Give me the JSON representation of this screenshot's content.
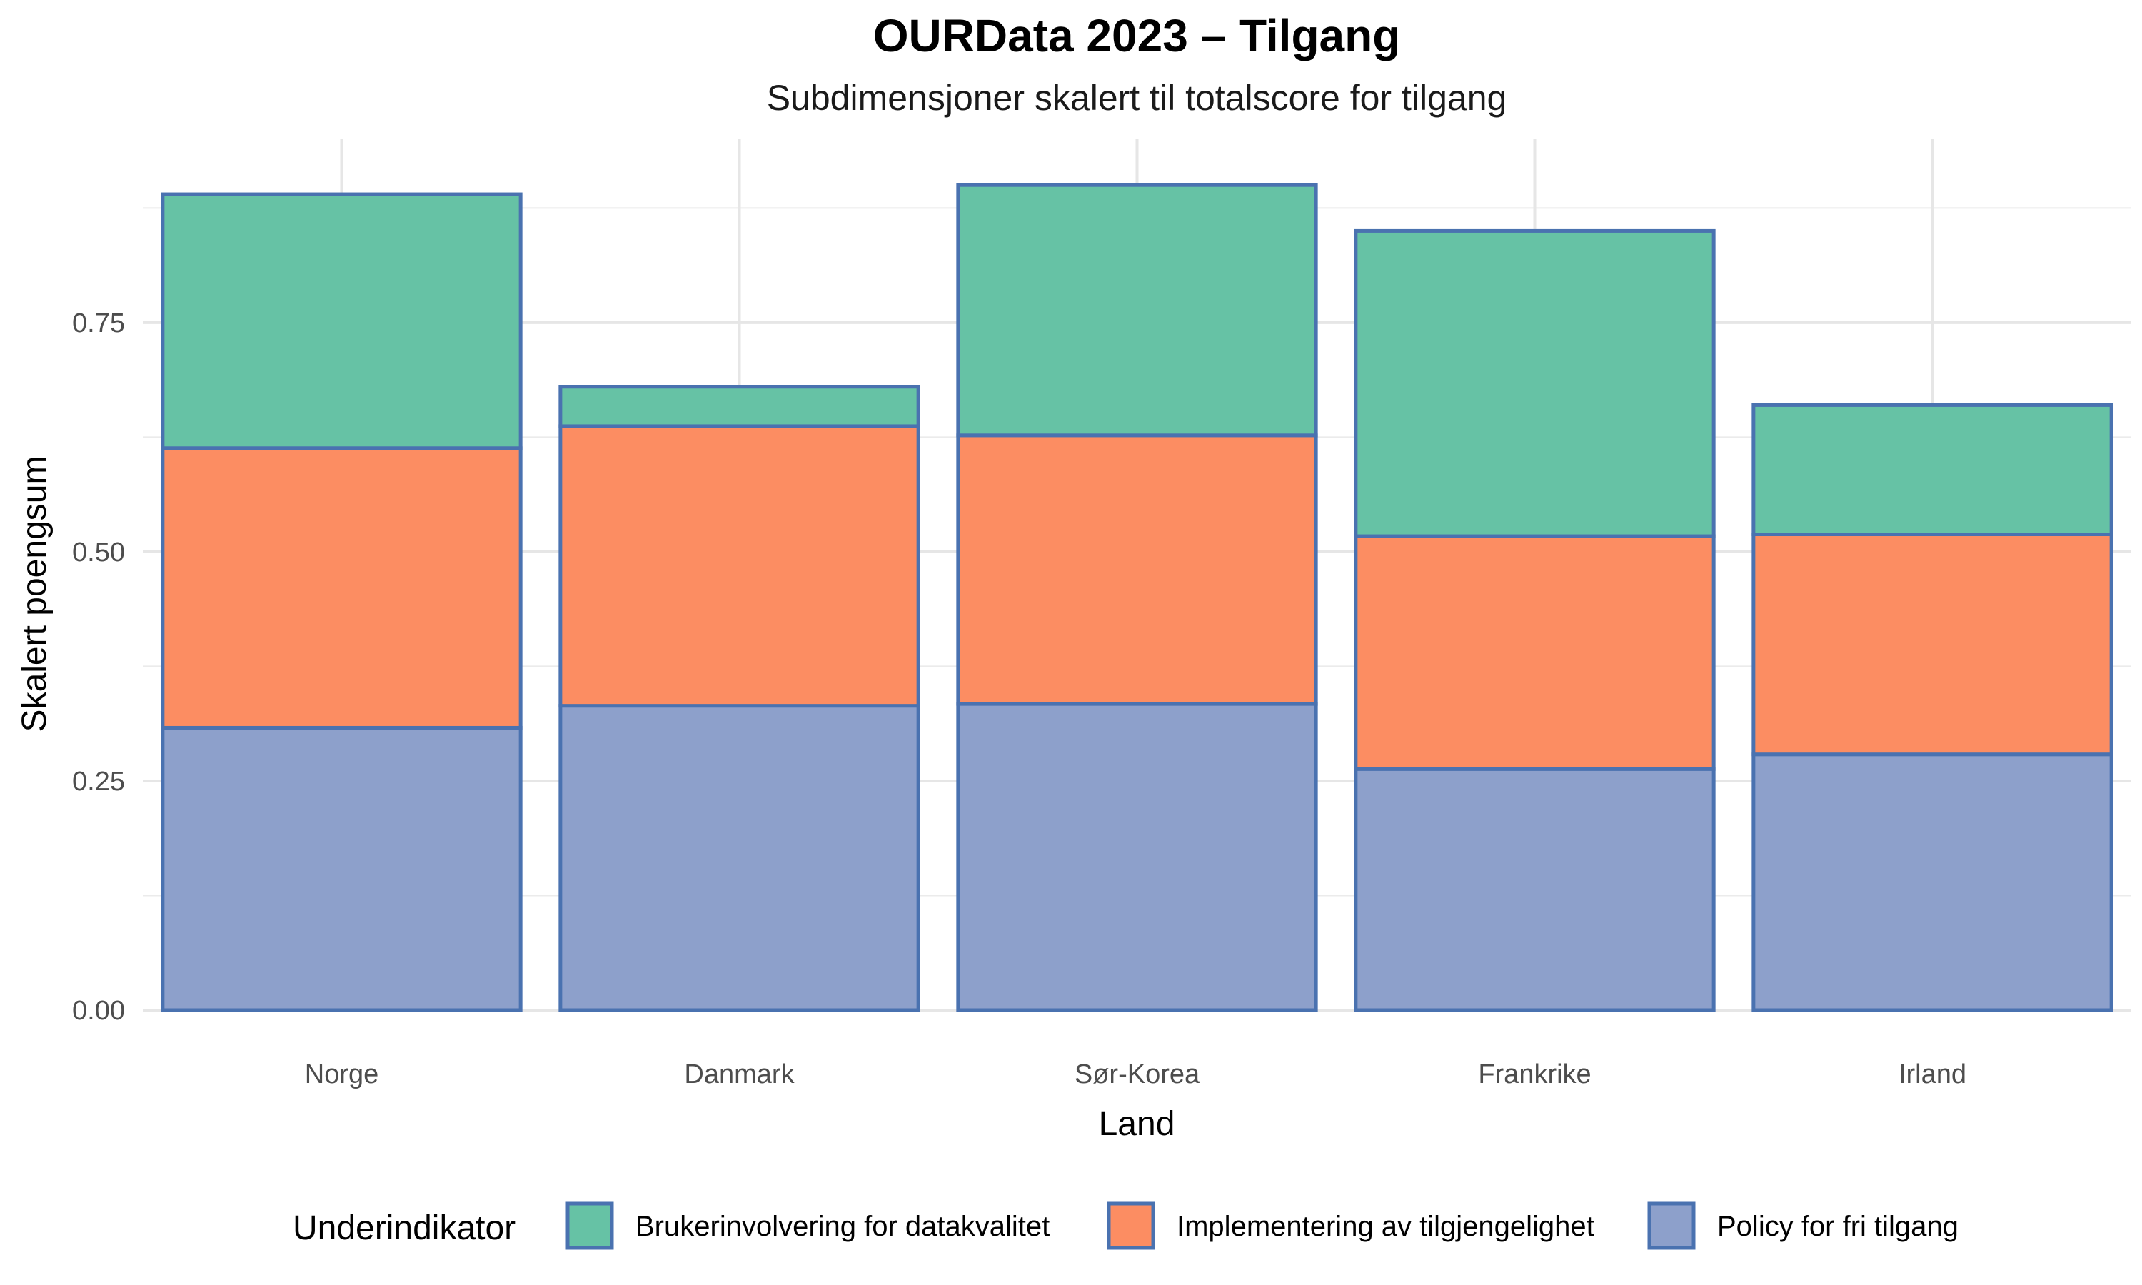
{
  "chart_data": {
    "type": "bar",
    "stacked": true,
    "title": "OURData 2023 – Tilgang",
    "subtitle": "Subdimensjoner skalert til totalscore for tilgang",
    "xlabel": "Land",
    "ylabel": "Skalert poengsum",
    "ylim": [
      0,
      0.95
    ],
    "yticks": [
      "0.00",
      "0.25",
      "0.50",
      "0.75"
    ],
    "grid": true,
    "legend_position": "bottom",
    "legend_title": "Underindikator",
    "bar_outline_color": "#4a72b0",
    "categories": [
      "Norge",
      "Danmark",
      "Sør-Korea",
      "Frankrike",
      "Irland"
    ],
    "series": [
      {
        "name": "Policy for fri tilgang",
        "color": "#8da0cb",
        "values": [
          0.308,
          0.332,
          0.334,
          0.263,
          0.279
        ]
      },
      {
        "name": "Implementering av tilgjengelighet",
        "color": "#fc8d62",
        "values": [
          0.305,
          0.305,
          0.293,
          0.254,
          0.24
        ]
      },
      {
        "name": "Brukerinvolvering for datakvalitet",
        "color": "#66c2a5",
        "values": [
          0.277,
          0.043,
          0.273,
          0.333,
          0.141
        ]
      }
    ],
    "legend_order": [
      "Brukerinvolvering for datakvalitet",
      "Implementering av tilgjengelighet",
      "Policy for fri tilgang"
    ]
  }
}
